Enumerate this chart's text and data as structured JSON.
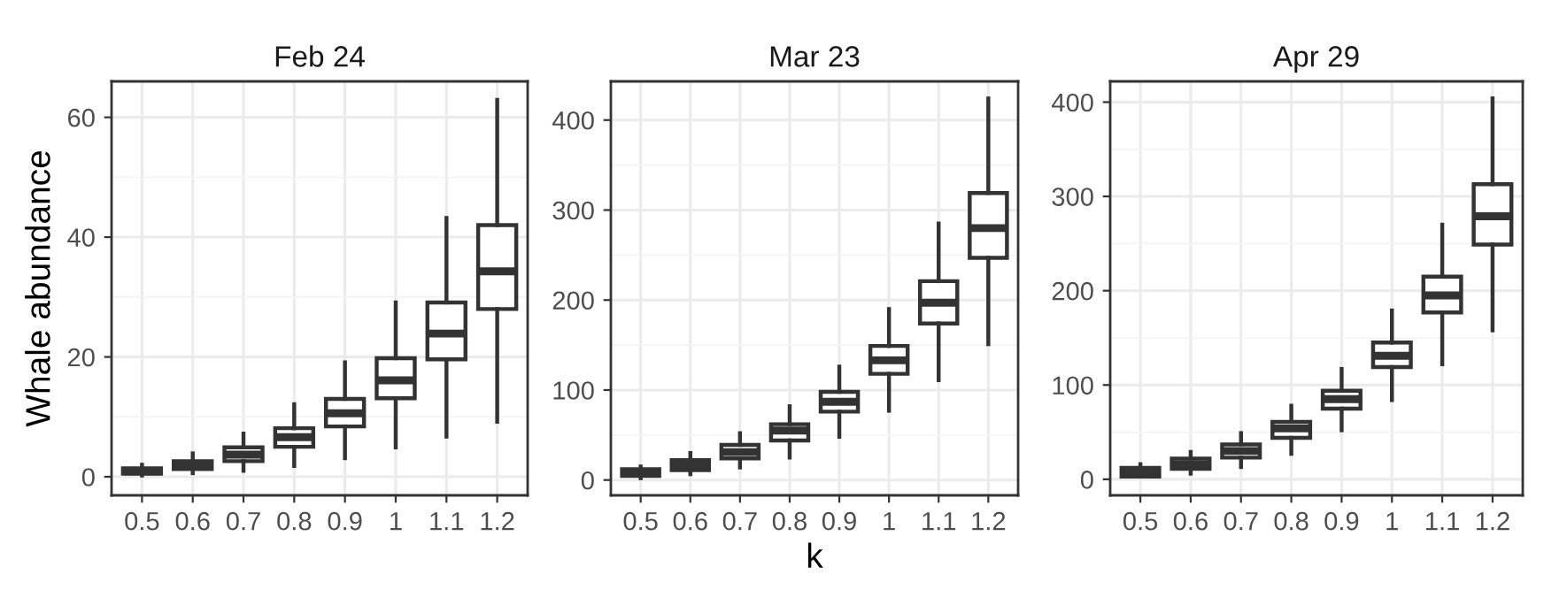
{
  "chart_data": [
    {
      "type": "box",
      "title": "Feb 24",
      "ylabel": "Whale abundance",
      "categories": [
        "0.5",
        "0.6",
        "0.7",
        "0.8",
        "0.9",
        "1",
        "1.1",
        "1.2"
      ],
      "ylim": [
        -3.1,
        66
      ],
      "yticks": [
        0,
        20,
        40,
        60
      ],
      "grid": true,
      "color": "#333333",
      "boxes": [
        {
          "low": 0.2,
          "q1": 0.5,
          "median": 0.9,
          "q3": 1.4,
          "high": 2
        },
        {
          "low": 0.6,
          "q1": 1.3,
          "median": 2,
          "q3": 2.6,
          "high": 3.9
        },
        {
          "low": 1,
          "q1": 2.6,
          "median": 3.7,
          "q3": 4.9,
          "high": 7.2
        },
        {
          "low": 1.8,
          "q1": 5,
          "median": 6.6,
          "q3": 8.1,
          "high": 12.1
        },
        {
          "low": 3.1,
          "q1": 8.4,
          "median": 10.6,
          "q3": 13,
          "high": 19.1
        },
        {
          "low": 4.9,
          "q1": 13.1,
          "median": 16.1,
          "q3": 19.8,
          "high": 29.1
        },
        {
          "low": 6.7,
          "q1": 19.6,
          "median": 23.9,
          "q3": 29.1,
          "high": 43.2
        },
        {
          "low": 9.2,
          "q1": 28,
          "median": 34.3,
          "q3": 42,
          "high": 62.9
        }
      ]
    },
    {
      "type": "box",
      "title": "Mar 23",
      "xlabel": "k",
      "categories": [
        "0.5",
        "0.6",
        "0.7",
        "0.8",
        "0.9",
        "1",
        "1.1",
        "1.2"
      ],
      "ylim": [
        -17,
        443
      ],
      "yticks": [
        0,
        100,
        200,
        300,
        400
      ],
      "grid": true,
      "color": "#333333",
      "boxes": [
        {
          "low": 2,
          "q1": 4.6,
          "median": 8,
          "q3": 12,
          "high": 15
        },
        {
          "low": 6.5,
          "q1": 11,
          "median": 16,
          "q3": 22,
          "high": 30
        },
        {
          "low": 14,
          "q1": 24,
          "median": 31,
          "q3": 39,
          "high": 52
        },
        {
          "low": 25,
          "q1": 44,
          "median": 55,
          "q3": 62,
          "high": 82
        },
        {
          "low": 48,
          "q1": 76,
          "median": 87,
          "q3": 98,
          "high": 126
        },
        {
          "low": 77,
          "q1": 118,
          "median": 133,
          "q3": 149,
          "high": 190
        },
        {
          "low": 111,
          "q1": 174,
          "median": 197,
          "q3": 221,
          "high": 285
        },
        {
          "low": 151,
          "q1": 247,
          "median": 280,
          "q3": 319,
          "high": 424
        }
      ]
    },
    {
      "type": "box",
      "title": "Apr 29",
      "categories": [
        "0.5",
        "0.6",
        "0.7",
        "0.8",
        "0.9",
        "1",
        "1.1",
        "1.2"
      ],
      "ylim": [
        -17,
        422
      ],
      "yticks": [
        0,
        100,
        200,
        300,
        400
      ],
      "grid": true,
      "color": "#333333",
      "boxes": [
        {
          "low": 3,
          "q1": 3,
          "median": 8,
          "q3": 12,
          "high": 16
        },
        {
          "low": 6,
          "q1": 11,
          "median": 16,
          "q3": 22,
          "high": 29
        },
        {
          "low": 13,
          "q1": 23,
          "median": 30,
          "q3": 37,
          "high": 49
        },
        {
          "low": 27,
          "q1": 44,
          "median": 54,
          "q3": 61,
          "high": 78
        },
        {
          "low": 52,
          "q1": 75,
          "median": 85,
          "q3": 94,
          "high": 117
        },
        {
          "low": 84,
          "q1": 119,
          "median": 131,
          "q3": 145,
          "high": 179
        },
        {
          "low": 122,
          "q1": 177,
          "median": 195,
          "q3": 215,
          "high": 270
        },
        {
          "low": 158,
          "q1": 249,
          "median": 279,
          "q3": 313,
          "high": 404
        }
      ]
    }
  ]
}
